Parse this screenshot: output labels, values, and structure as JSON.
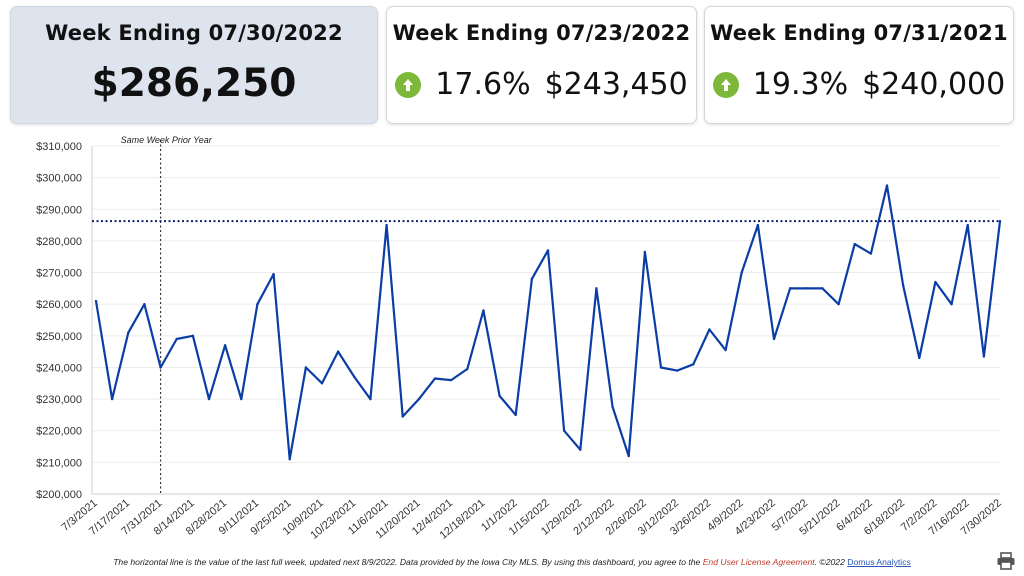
{
  "cards": [
    {
      "title": "Week Ending 07/30/2022",
      "value": "$286,250"
    },
    {
      "title": "Week Ending 07/23/2022",
      "change": "17.6%",
      "value": "$243,450",
      "trend_icon": "arrow-up-circle-icon"
    },
    {
      "title": "Week Ending 07/31/2021",
      "change": "19.3%",
      "value": "$240,000",
      "trend_icon": "arrow-up-circle-icon"
    }
  ],
  "colors": {
    "line": "#0b3da6",
    "reference": "#10206a",
    "up": "#7db83a"
  },
  "chart_data": {
    "type": "line",
    "annotation": "Same Week Prior Year",
    "x_tick_labels": [
      "7/3/2021",
      "7/17/2021",
      "7/31/2021",
      "8/14/2021",
      "8/28/2021",
      "9/11/2021",
      "9/25/2021",
      "10/9/2021",
      "10/23/2021",
      "11/6/2021",
      "11/20/2021",
      "12/4/2021",
      "12/18/2021",
      "1/1/2022",
      "1/15/2022",
      "1/29/2022",
      "2/12/2022",
      "2/26/2022",
      "3/12/2022",
      "3/26/2022",
      "4/9/2022",
      "4/23/2022",
      "5/7/2022",
      "5/21/2022",
      "6/4/2022",
      "6/18/2022",
      "7/2/2022",
      "7/16/2022",
      "7/30/2022"
    ],
    "x": [
      "7/3/2021",
      "7/10/2021",
      "7/17/2021",
      "7/24/2021",
      "7/31/2021",
      "8/7/2021",
      "8/14/2021",
      "8/21/2021",
      "8/28/2021",
      "9/4/2021",
      "9/11/2021",
      "9/18/2021",
      "9/25/2021",
      "10/2/2021",
      "10/9/2021",
      "10/16/2021",
      "10/23/2021",
      "10/30/2021",
      "11/6/2021",
      "11/13/2021",
      "11/20/2021",
      "11/27/2021",
      "12/4/2021",
      "12/11/2021",
      "12/18/2021",
      "12/25/2021",
      "1/1/2022",
      "1/8/2022",
      "1/15/2022",
      "1/22/2022",
      "1/29/2022",
      "2/5/2022",
      "2/12/2022",
      "2/19/2022",
      "2/26/2022",
      "3/5/2022",
      "3/12/2022",
      "3/19/2022",
      "3/26/2022",
      "4/2/2022",
      "4/9/2022",
      "4/16/2022",
      "4/23/2022",
      "4/30/2022",
      "5/7/2022",
      "5/14/2022",
      "5/21/2022",
      "5/28/2022",
      "6/4/2022",
      "6/11/2022",
      "6/18/2022",
      "6/25/2022",
      "7/2/2022",
      "7/9/2022",
      "7/16/2022",
      "7/23/2022",
      "7/30/2022"
    ],
    "values": [
      261000,
      230000,
      251000,
      260000,
      240000,
      249000,
      250000,
      230000,
      247000,
      230000,
      260000,
      269500,
      211000,
      240000,
      235000,
      245000,
      237000,
      230000,
      285000,
      224500,
      230000,
      236500,
      236000,
      239500,
      258000,
      231000,
      225000,
      268000,
      277000,
      220000,
      214000,
      265000,
      227500,
      212000,
      276500,
      240000,
      239000,
      241000,
      252000,
      245500,
      270000,
      285000,
      249000,
      265000,
      265000,
      265000,
      260000,
      279000,
      276000,
      297500,
      266000,
      243000,
      267000,
      260000,
      285000,
      243450,
      286250
    ],
    "y_ticks": [
      "$200,000",
      "$210,000",
      "$220,000",
      "$230,000",
      "$240,000",
      "$250,000",
      "$260,000",
      "$270,000",
      "$280,000",
      "$290,000",
      "$300,000",
      "$310,000"
    ],
    "ylim": [
      200000,
      310000
    ],
    "reference_line": 286250,
    "reference_x": "7/31/2021",
    "grid": true
  },
  "footer": {
    "text": "The horizontal line is the value of the last full week, updated next 8/9/2022.  Data provided by the Iowa City MLS. By using this dashboard, you agree to the ",
    "eula": "End User License Agreement",
    "after": ".  ©2022 ",
    "brand": "Domus Analytics"
  }
}
